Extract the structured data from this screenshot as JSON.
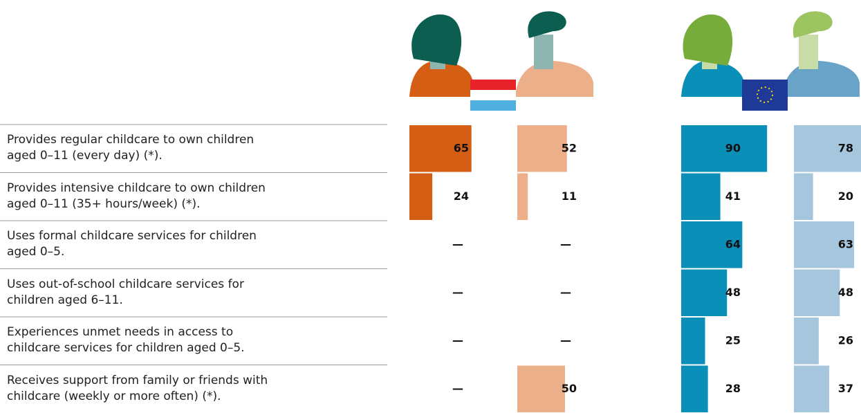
{
  "chart_data": {
    "type": "bar",
    "categories": [
      "Provides regular childcare to own children\naged 0–11 (every day) (*).",
      "Provides intensive childcare to own children\naged 0–11 (35+ hours/week) (*).",
      "Uses formal childcare services for children\naged 0–5.",
      "Uses out-of-school childcare services for\nchildren aged 6–11.",
      "Experiences unmet needs in access to\nchildcare services for children aged 0–5.",
      "Receives support from family or friends with\nchildcare (weekly or more often) (*)."
    ],
    "series": [
      {
        "color": "#d45f14",
        "values": [
          65,
          24,
          null,
          null,
          null,
          null
        ],
        "value_labels": [
          "65",
          "24",
          "—",
          "—",
          "—",
          "—"
        ]
      },
      {
        "color": "#ebb08a",
        "values": [
          52,
          11,
          null,
          null,
          null,
          50
        ],
        "value_labels": [
          "52",
          "11",
          "—",
          "—",
          "—",
          "50"
        ]
      },
      {
        "color": "#0a8fb8",
        "values": [
          90,
          41,
          64,
          48,
          25,
          28
        ]
      },
      {
        "color": "#a5c6dd",
        "values": [
          78,
          20,
          63,
          48,
          26,
          37
        ]
      }
    ]
  }
}
